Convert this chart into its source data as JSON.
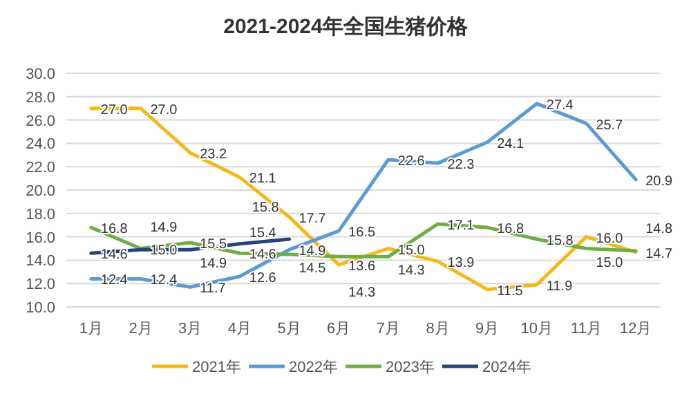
{
  "chart_data": {
    "type": "line",
    "title": "2021-2024年全国生猪价格",
    "categories": [
      "1月",
      "2月",
      "3月",
      "4月",
      "5月",
      "6月",
      "7月",
      "8月",
      "9月",
      "10月",
      "11月",
      "12月"
    ],
    "series": [
      {
        "name": "2021年",
        "color": "#f5b819",
        "values": [
          27.0,
          27.0,
          23.2,
          21.1,
          17.7,
          13.6,
          15.0,
          13.9,
          11.5,
          11.9,
          16.0,
          14.7
        ],
        "value_labels": [
          "27.0",
          "27.0",
          "23.2",
          "21.1",
          "17.7",
          "13.6",
          "15.0",
          "13.9",
          "11.5",
          "11.9",
          "16.0",
          "14.7"
        ]
      },
      {
        "name": "2022年",
        "color": "#5b9bd5",
        "values": [
          12.4,
          12.4,
          11.7,
          12.6,
          14.9,
          16.5,
          22.6,
          22.3,
          24.1,
          27.4,
          25.7,
          20.9
        ],
        "value_labels": [
          "12.4",
          "12.4",
          "11.7",
          "12.6",
          "14.9",
          "16.5",
          "22.6",
          "22.3",
          "24.1",
          "27.4",
          "25.7",
          "20.9"
        ]
      },
      {
        "name": "2023年",
        "color": "#70ad47",
        "values": [
          16.8,
          15.0,
          15.5,
          14.6,
          14.5,
          14.3,
          14.3,
          17.1,
          16.8,
          15.8,
          15.0,
          14.8
        ],
        "value_labels": [
          "16.8",
          "15.0",
          "15.5",
          "14.6",
          "14.5",
          "14.3",
          "14.3",
          "17.1",
          "16.8",
          "15.8",
          "15.0",
          "14.8"
        ]
      },
      {
        "name": "2024年",
        "color": "#264478",
        "values": [
          14.6,
          14.9,
          14.9,
          15.4,
          15.8,
          null,
          null,
          null,
          null,
          null,
          null,
          null
        ],
        "value_labels": [
          "14.6",
          "14.9",
          "14.9",
          "15.4",
          "15.8",
          null,
          null,
          null,
          null,
          null,
          null,
          null
        ]
      }
    ],
    "ylim": [
      10,
      30
    ],
    "yticks": [
      {
        "value": 10,
        "label": "10.0"
      },
      {
        "value": 12,
        "label": "12.0"
      },
      {
        "value": 14,
        "label": "14.0"
      },
      {
        "value": 16,
        "label": "16.0"
      },
      {
        "value": 18,
        "label": "18.0"
      },
      {
        "value": 20,
        "label": "20.0"
      },
      {
        "value": 22,
        "label": "22.0"
      },
      {
        "value": 24,
        "label": "24.0"
      },
      {
        "value": 26,
        "label": "26.0"
      },
      {
        "value": 28,
        "label": "28.0"
      },
      {
        "value": 30,
        "label": "30.0"
      }
    ],
    "grid": "y",
    "legend": "bottom",
    "marker": "none",
    "line_style": "solid"
  }
}
